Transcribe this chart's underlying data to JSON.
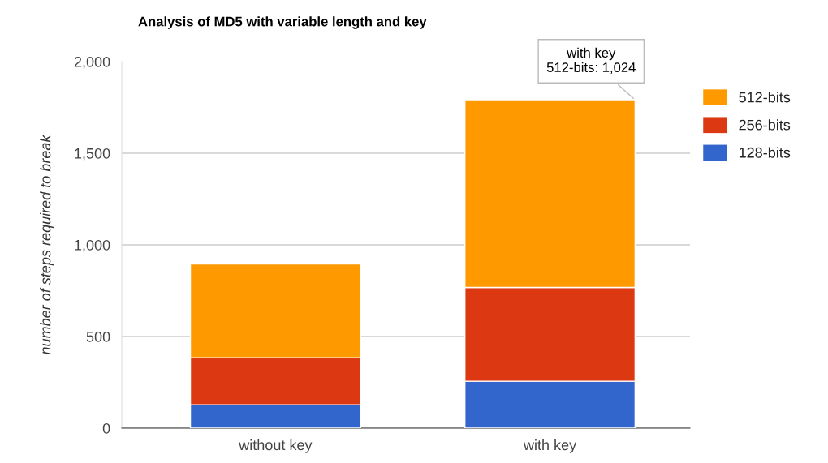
{
  "chart_data": {
    "type": "bar",
    "title": "Analysis of MD5 with variable length and key",
    "ylabel": "number of steps required to break",
    "categories": [
      "without key",
      "with key"
    ],
    "stacked": true,
    "series": [
      {
        "name": "128-bits",
        "color": "#3366cc",
        "values": [
          128,
          256
        ]
      },
      {
        "name": "256-bits",
        "color": "#dc3912",
        "values": [
          256,
          512
        ]
      },
      {
        "name": "512-bits",
        "color": "#ff9900",
        "values": [
          512,
          1024
        ]
      }
    ],
    "ylim": [
      0,
      2000
    ],
    "yticks": [
      {
        "value": 0,
        "label": "0"
      },
      {
        "value": 500,
        "label": "500"
      },
      {
        "value": 1000,
        "label": "1,000"
      },
      {
        "value": 1500,
        "label": "1,500"
      },
      {
        "value": 2000,
        "label": "2,000"
      }
    ],
    "grid": "y",
    "legend": "top right",
    "annotations": [
      {
        "text": "with key\n512-bits: 1,024",
        "x": "with key",
        "y": 1792
      }
    ]
  }
}
